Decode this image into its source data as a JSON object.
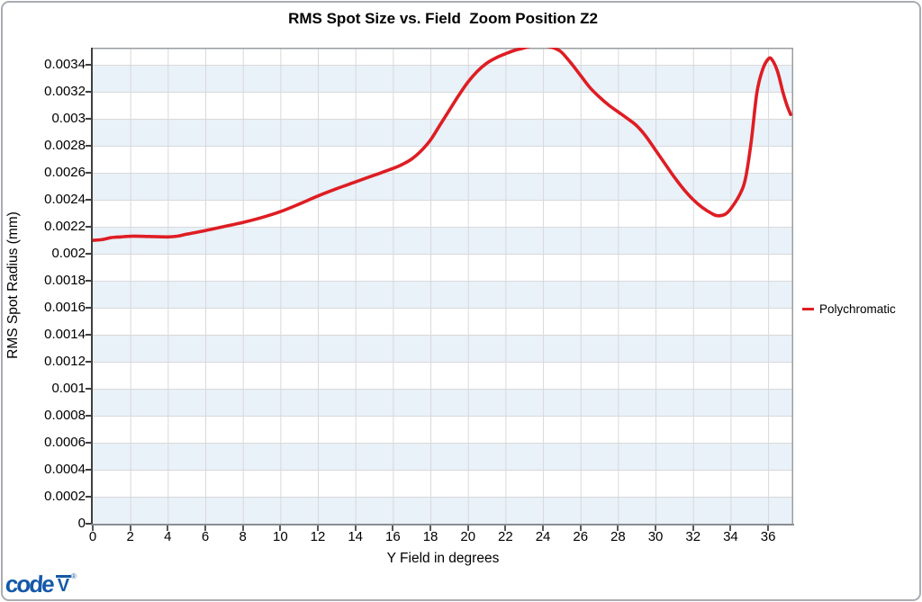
{
  "window": {
    "background": "#ffffff",
    "border_color": "#aaadb2"
  },
  "legend": {
    "items": [
      {
        "label": "Polychromatic",
        "color": "#de1d23"
      }
    ]
  },
  "logo": {
    "brand": "code",
    "mark": "V",
    "reg": "®",
    "color": "#1459a8"
  },
  "chart_data": {
    "type": "line",
    "title": "RMS Spot Size vs. Field  Zoom Position Z2",
    "xlabel": "Y Field in degrees",
    "ylabel": "RMS Spot Radius (mm)",
    "xlim": [
      0,
      37.34
    ],
    "ylim": [
      0,
      0.003527
    ],
    "x_tick_labels": [
      "0",
      "2",
      "4",
      "6",
      "8",
      "10",
      "12",
      "14",
      "16",
      "18",
      "20",
      "22",
      "24",
      "26",
      "28",
      "30",
      "32",
      "34",
      "36"
    ],
    "y_tick_labels": [
      "0",
      "0.0002",
      "0.0004",
      "0.0006",
      "0.0008",
      "0.001",
      "0.0012",
      "0.0014",
      "0.0016",
      "0.0018",
      "0.002",
      "0.0022",
      "0.0024",
      "0.0026",
      "0.0028",
      "0.003",
      "0.0032",
      "0.0034"
    ],
    "grid": true,
    "band_colors": [
      "#e9f1f9",
      "#ffffff"
    ],
    "gridline_color": "#d9d9d9",
    "plot_border_color": "#9a9da1",
    "axis_color_left": "#3f3f3f",
    "axis_color_bottom": "#8a8d91",
    "legend_position": "right",
    "series": [
      {
        "name": "Polychromatic",
        "color": "#de1d23",
        "points": [
          [
            0,
            0.0021
          ],
          [
            0.5,
            0.002105
          ],
          [
            1,
            0.00212
          ],
          [
            1.5,
            0.002125
          ],
          [
            2,
            0.00213
          ],
          [
            2.5,
            0.00213
          ],
          [
            3,
            0.002128
          ],
          [
            4,
            0.002125
          ],
          [
            4.5,
            0.00213
          ],
          [
            5,
            0.002145
          ],
          [
            6,
            0.002172
          ],
          [
            7,
            0.002202
          ],
          [
            8,
            0.002232
          ],
          [
            9,
            0.002268
          ],
          [
            10,
            0.002312
          ],
          [
            11,
            0.002368
          ],
          [
            12,
            0.002428
          ],
          [
            13,
            0.002482
          ],
          [
            14,
            0.002532
          ],
          [
            15,
            0.002582
          ],
          [
            16,
            0.002632
          ],
          [
            16.5,
            0.002662
          ],
          [
            17,
            0.002702
          ],
          [
            17.5,
            0.002762
          ],
          [
            18,
            0.002842
          ],
          [
            18.5,
            0.002952
          ],
          [
            19,
            0.003062
          ],
          [
            19.5,
            0.003172
          ],
          [
            20,
            0.003272
          ],
          [
            20.5,
            0.003352
          ],
          [
            21,
            0.003412
          ],
          [
            21.5,
            0.003452
          ],
          [
            22,
            0.003482
          ],
          [
            22.5,
            0.003508
          ],
          [
            23,
            0.003525
          ],
          [
            23.3,
            0.003538
          ],
          [
            23.7,
            0.003552
          ],
          [
            24,
            0.00355
          ],
          [
            24.3,
            0.003536
          ],
          [
            24.7,
            0.003518
          ],
          [
            25,
            0.003492
          ],
          [
            25.5,
            0.003412
          ],
          [
            26,
            0.003322
          ],
          [
            26.5,
            0.003232
          ],
          [
            27,
            0.003162
          ],
          [
            27.5,
            0.003102
          ],
          [
            28,
            0.003052
          ],
          [
            28.5,
            0.003002
          ],
          [
            29,
            0.002948
          ],
          [
            29.5,
            0.002868
          ],
          [
            30,
            0.002768
          ],
          [
            30.5,
            0.002668
          ],
          [
            31,
            0.002568
          ],
          [
            31.5,
            0.002478
          ],
          [
            32,
            0.002402
          ],
          [
            32.5,
            0.002342
          ],
          [
            33,
            0.002298
          ],
          [
            33.3,
            0.002282
          ],
          [
            33.7,
            0.002292
          ],
          [
            34,
            0.002332
          ],
          [
            34.5,
            0.002442
          ],
          [
            34.8,
            0.002562
          ],
          [
            35.1,
            0.002832
          ],
          [
            35.4,
            0.003192
          ],
          [
            35.7,
            0.003362
          ],
          [
            36,
            0.003442
          ],
          [
            36.2,
            0.00344
          ],
          [
            36.5,
            0.003352
          ],
          [
            36.8,
            0.003192
          ],
          [
            37,
            0.003102
          ],
          [
            37.2,
            0.003032
          ]
        ]
      }
    ]
  }
}
